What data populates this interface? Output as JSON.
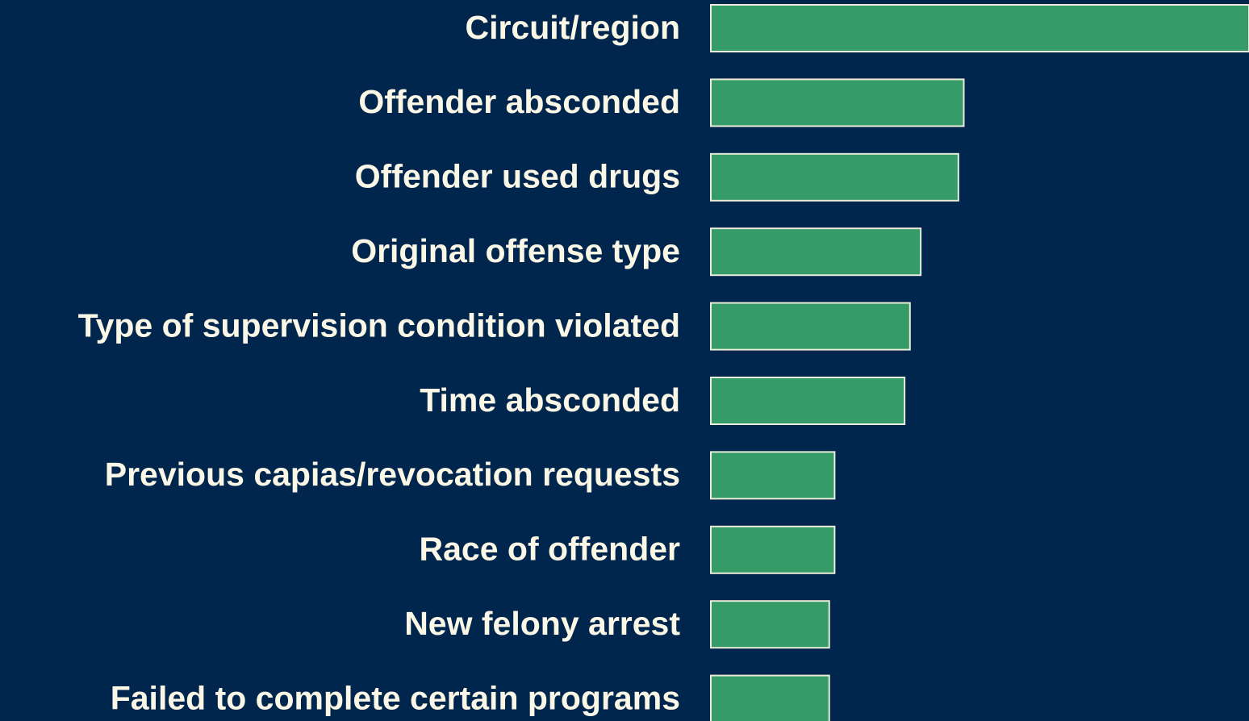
{
  "chart_data": {
    "type": "bar",
    "orientation": "horizontal",
    "categories": [
      "Circuit/region",
      "Offender absconded",
      "Offender used drugs",
      "Original offense type",
      "Type of supervision condition violated",
      "Time absconded",
      "Previous capias/revocation requests",
      "Race of offender",
      "New felony arrest",
      "Failed to complete certain programs"
    ],
    "values": [
      100,
      47,
      46,
      39,
      37,
      36,
      23,
      23,
      22,
      22
    ],
    "color": "#359b68",
    "xlim": [
      0,
      100
    ]
  }
}
